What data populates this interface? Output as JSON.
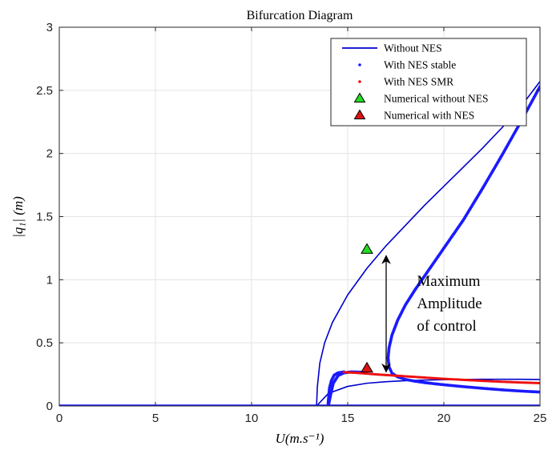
{
  "chart_data": {
    "type": "line",
    "title": "Bifurcation Diagram",
    "xlabel": "U(m.s⁻¹)",
    "ylabel": "|q₁| (m)",
    "xlim": [
      0,
      25
    ],
    "ylim": [
      0,
      3
    ],
    "xticks": [
      "0",
      "5",
      "10",
      "15",
      "20",
      "25"
    ],
    "yticks": [
      "0",
      "0.5",
      "1",
      "1.5",
      "2",
      "2.5",
      "3"
    ],
    "grid": true,
    "legend_position": "top-right",
    "series": [
      {
        "name": "Without NES",
        "style": "line",
        "color": "#0000cc",
        "branches": [
          {
            "x": [
              0,
              13.38
            ],
            "y": [
              0,
              0
            ]
          },
          {
            "x": [
              13.38,
              13.42,
              13.55,
              13.8,
              14.2,
              15,
              16,
              17,
              18,
              19,
              20,
              21,
              22,
              23,
              24,
              25
            ],
            "y": [
              0,
              0.15,
              0.34,
              0.5,
              0.66,
              0.88,
              1.09,
              1.27,
              1.43,
              1.59,
              1.74,
              1.89,
              2.04,
              2.2,
              2.37,
              2.57
            ]
          },
          {
            "x": [
              13.38,
              14,
              15,
              16,
              17,
              18,
              19,
              20,
              21,
              22,
              23,
              24,
              25
            ],
            "y": [
              0,
              0.1,
              0.155,
              0.18,
              0.192,
              0.2,
              0.205,
              0.208,
              0.21,
              0.211,
              0.211,
              0.211,
              0.21
            ]
          }
        ]
      },
      {
        "name": "With NES stable",
        "style": "dots",
        "color": "#1a1aff",
        "branches": [
          {
            "x": [
              0,
              25
            ],
            "y": [
              0,
              0
            ]
          },
          {
            "x": [
              13.98,
              14.05,
              14.15,
              14.3,
              14.5,
              14.8
            ],
            "y": [
              0.02,
              0.14,
              0.2,
              0.245,
              0.262,
              0.27
            ]
          },
          {
            "x": [
              14.02,
              14.1,
              14.25,
              14.5,
              14.8,
              15.2,
              15.6,
              15.9
            ],
            "y": [
              0.02,
              0.08,
              0.18,
              0.24,
              0.262,
              0.27,
              0.268,
              0.264
            ]
          },
          {
            "x": [
              25,
              24,
              23,
              22,
              21,
              20,
              19.5,
              19,
              18.5,
              18,
              17.6,
              17.3,
              17.15,
              17.1,
              17.15,
              17.3,
              17.6,
              18,
              18.5,
              19,
              19.5,
              20,
              21,
              22,
              23,
              24,
              25
            ],
            "y": [
              2.53,
              2.25,
              1.98,
              1.72,
              1.47,
              1.25,
              1.14,
              1.03,
              0.92,
              0.8,
              0.68,
              0.56,
              0.46,
              0.38,
              0.31,
              0.26,
              0.23,
              0.21,
              0.196,
              0.185,
              0.176,
              0.168,
              0.153,
              0.14,
              0.128,
              0.118,
              0.11
            ]
          }
        ]
      },
      {
        "name": "With NES SMR",
        "style": "dots",
        "color": "#ee1111",
        "branches": [
          {
            "x": [
              14.8,
              15.5,
              16,
              16.5,
              17,
              18,
              19,
              20,
              21,
              22,
              23,
              24,
              25
            ],
            "y": [
              0.268,
              0.262,
              0.256,
              0.25,
              0.245,
              0.235,
              0.225,
              0.215,
              0.207,
              0.199,
              0.192,
              0.186,
              0.181
            ]
          }
        ]
      },
      {
        "name": "Numerical without NES",
        "style": "marker",
        "color": "#22dd22",
        "points": [
          {
            "x": 16,
            "y": 1.24
          }
        ]
      },
      {
        "name": "Numerical with NES",
        "style": "marker",
        "color": "#dd1111",
        "points": [
          {
            "x": 16,
            "y": 0.3
          }
        ]
      }
    ],
    "annotations": [
      {
        "kind": "double-arrow",
        "x": 17,
        "y0": 0.27,
        "y1": 1.19
      },
      {
        "kind": "text",
        "lines": [
          "Maximum",
          "Amplitude",
          "of control"
        ],
        "x": 18.6,
        "y": 0.95
      }
    ]
  }
}
